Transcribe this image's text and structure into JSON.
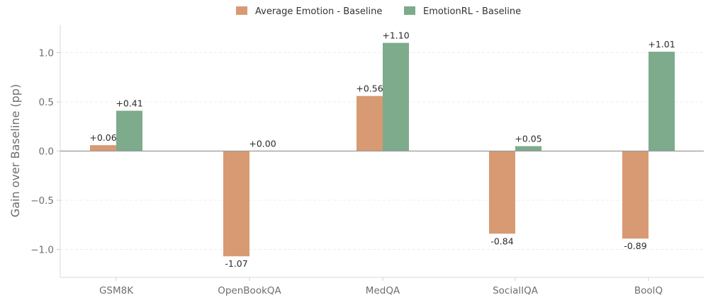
{
  "chart_data": {
    "type": "bar",
    "title": "",
    "xlabel": "",
    "ylabel": "Gain over Baseline (pp)",
    "ylim": [
      -1.28,
      1.28
    ],
    "yticks": [
      1.0,
      0.5,
      0.0,
      -0.5,
      -1.0
    ],
    "ytick_labels": [
      "1.0",
      "0.5",
      "0.0",
      "−0.5",
      "−1.0"
    ],
    "grid": true,
    "legend_position": "top-center",
    "categories": [
      "GSM8K",
      "OpenBookQA",
      "MedQA",
      "SocialIQA",
      "BoolQ"
    ],
    "series": [
      {
        "name": "Average Emotion - Baseline",
        "color": "#d89a72",
        "values": [
          0.06,
          -1.07,
          0.56,
          -0.84,
          -0.89
        ],
        "labels": [
          "+0.06",
          "-1.07",
          "+0.56",
          "-0.84",
          "-0.89"
        ]
      },
      {
        "name": "EmotionRL - Baseline",
        "color": "#7dab8c",
        "values": [
          0.41,
          0.0,
          1.1,
          0.05,
          1.01
        ],
        "labels": [
          "+0.41",
          "+0.00",
          "+1.10",
          "+0.05",
          "+1.01"
        ]
      }
    ]
  }
}
